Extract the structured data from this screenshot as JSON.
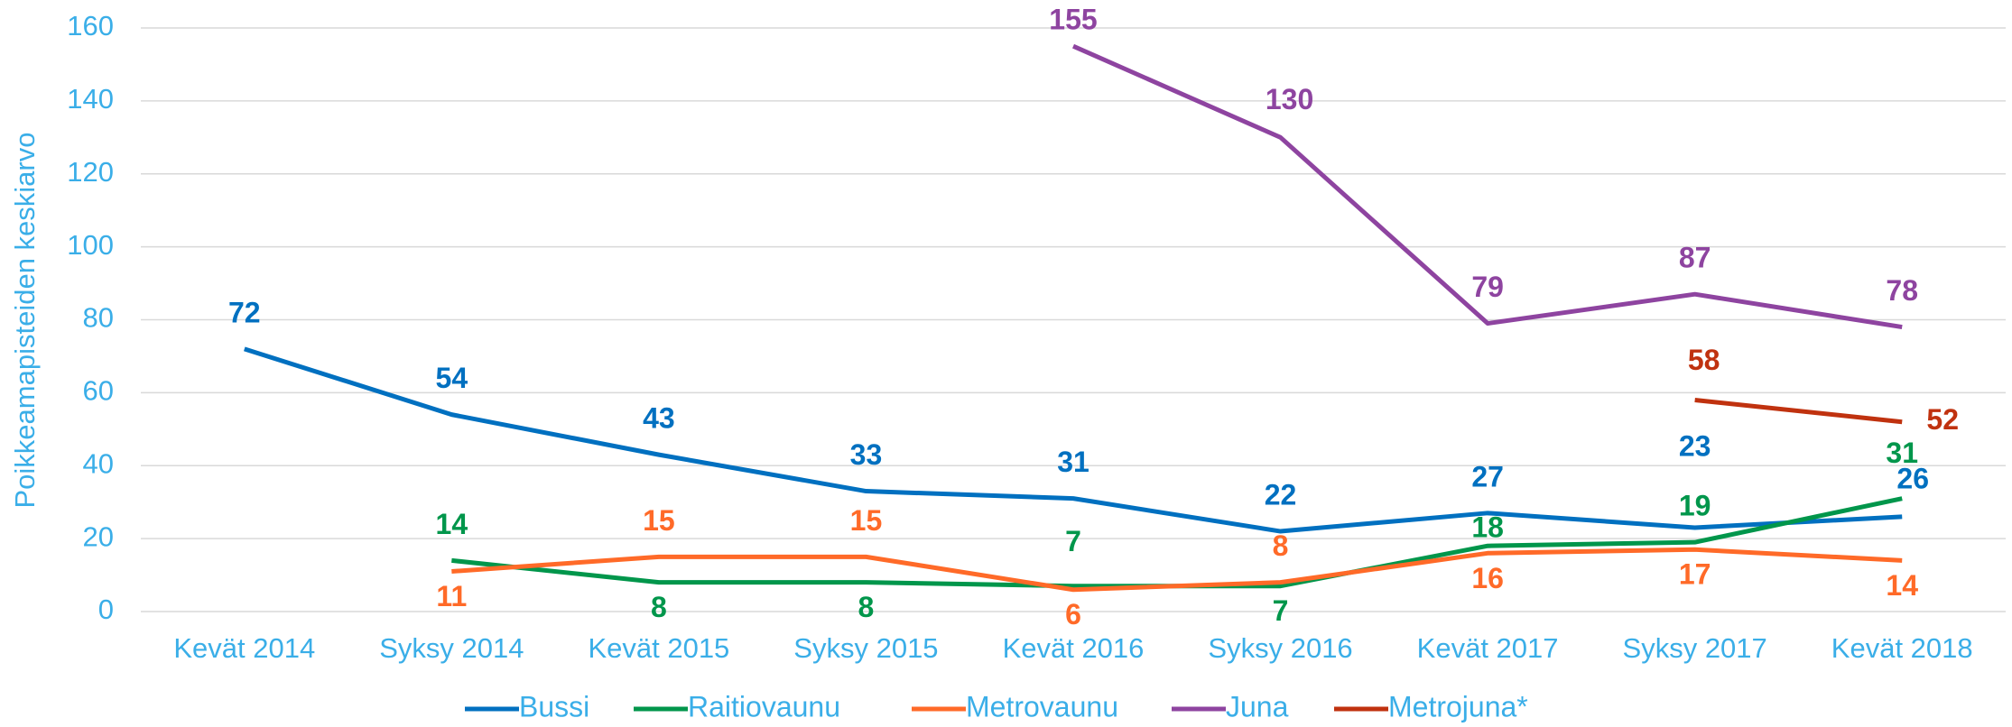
{
  "chart_data": {
    "type": "line",
    "y_label": "Poikkeamapisteiden keskiarvo",
    "categories": [
      "Kevät 2014",
      "Syksy 2014",
      "Kevät 2015",
      "Syksy 2015",
      "Kevät 2016",
      "Syksy 2016",
      "Kevät 2017",
      "Syksy 2017",
      "Kevät 2018"
    ],
    "series": [
      {
        "name": "Bussi",
        "color": "#0070c0",
        "values": [
          72,
          54,
          43,
          33,
          31,
          22,
          27,
          23,
          26
        ]
      },
      {
        "name": "Raitiovaunu",
        "color": "#00964b",
        "values": [
          null,
          14,
          8,
          8,
          7,
          7,
          18,
          19,
          31
        ]
      },
      {
        "name": "Metrovaunu",
        "color": "#ff6a28",
        "values": [
          null,
          11,
          15,
          15,
          6,
          8,
          16,
          17,
          14
        ]
      },
      {
        "name": "Juna",
        "color": "#8e44a0",
        "values": [
          null,
          null,
          null,
          null,
          155,
          130,
          79,
          87,
          78
        ]
      },
      {
        "name": "Metrojuna*",
        "color": "#c0320f",
        "values": [
          null,
          null,
          null,
          null,
          null,
          null,
          null,
          58,
          52
        ]
      }
    ],
    "ylim": [
      0,
      160
    ],
    "yticks": [
      0,
      20,
      40,
      60,
      80,
      100,
      120,
      140,
      160
    ],
    "grid": true,
    "legend": "bottom"
  }
}
